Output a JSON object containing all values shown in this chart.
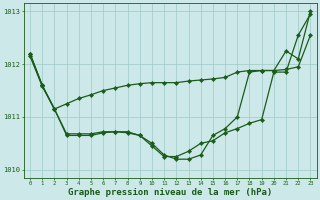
{
  "background_color": "#cce8e8",
  "grid_color": "#9ec8c8",
  "line_color": "#1a5c1a",
  "marker_color": "#1a5c1a",
  "xlabel": "Graphe pression niveau de la mer (hPa)",
  "xlabel_fontsize": 6.5,
  "xlim": [
    -0.5,
    23.5
  ],
  "ylim": [
    1009.85,
    1013.15
  ],
  "yticks": [
    1010,
    1011,
    1012,
    1013
  ],
  "xticks": [
    0,
    1,
    2,
    3,
    4,
    5,
    6,
    7,
    8,
    9,
    10,
    11,
    12,
    13,
    14,
    15,
    16,
    17,
    18,
    19,
    20,
    21,
    22,
    23
  ],
  "series1_x": [
    0,
    1,
    2,
    3,
    4,
    5,
    6,
    7,
    8,
    9,
    10,
    11,
    12,
    13,
    14,
    15,
    16,
    17,
    18,
    19,
    20,
    21,
    22,
    23
  ],
  "series1_y": [
    1012.2,
    1011.6,
    1011.15,
    1010.65,
    1010.65,
    1010.65,
    1010.7,
    1010.72,
    1010.7,
    1010.65,
    1010.45,
    1010.25,
    1010.25,
    1010.35,
    1010.5,
    1010.55,
    1010.7,
    1010.78,
    1010.88,
    1010.95,
    1011.85,
    1011.85,
    1012.55,
    1012.95
  ],
  "series2_x": [
    0,
    1,
    2,
    3,
    4,
    5,
    6,
    7,
    8,
    9,
    10,
    11,
    12,
    13,
    14,
    15,
    16,
    17,
    18,
    19,
    20,
    21,
    22,
    23
  ],
  "series2_y": [
    1012.15,
    1011.58,
    1011.15,
    1011.25,
    1011.35,
    1011.42,
    1011.5,
    1011.55,
    1011.6,
    1011.63,
    1011.65,
    1011.65,
    1011.65,
    1011.68,
    1011.7,
    1011.72,
    1011.75,
    1011.85,
    1011.88,
    1011.88,
    1011.88,
    1011.9,
    1011.95,
    1012.55
  ],
  "series3_x": [
    0,
    1,
    2,
    3,
    4,
    5,
    6,
    7,
    8,
    9,
    10,
    11,
    12,
    13,
    14,
    15,
    16,
    17,
    18,
    19,
    20,
    21,
    22,
    23
  ],
  "series3_y": [
    1012.2,
    1011.6,
    1011.15,
    1010.68,
    1010.68,
    1010.68,
    1010.72,
    1010.72,
    1010.72,
    1010.65,
    1010.5,
    1010.28,
    1010.2,
    1010.2,
    1010.28,
    1010.65,
    1010.78,
    1011.0,
    1011.85,
    1011.88,
    1011.88,
    1012.25,
    1012.1,
    1013.0
  ]
}
